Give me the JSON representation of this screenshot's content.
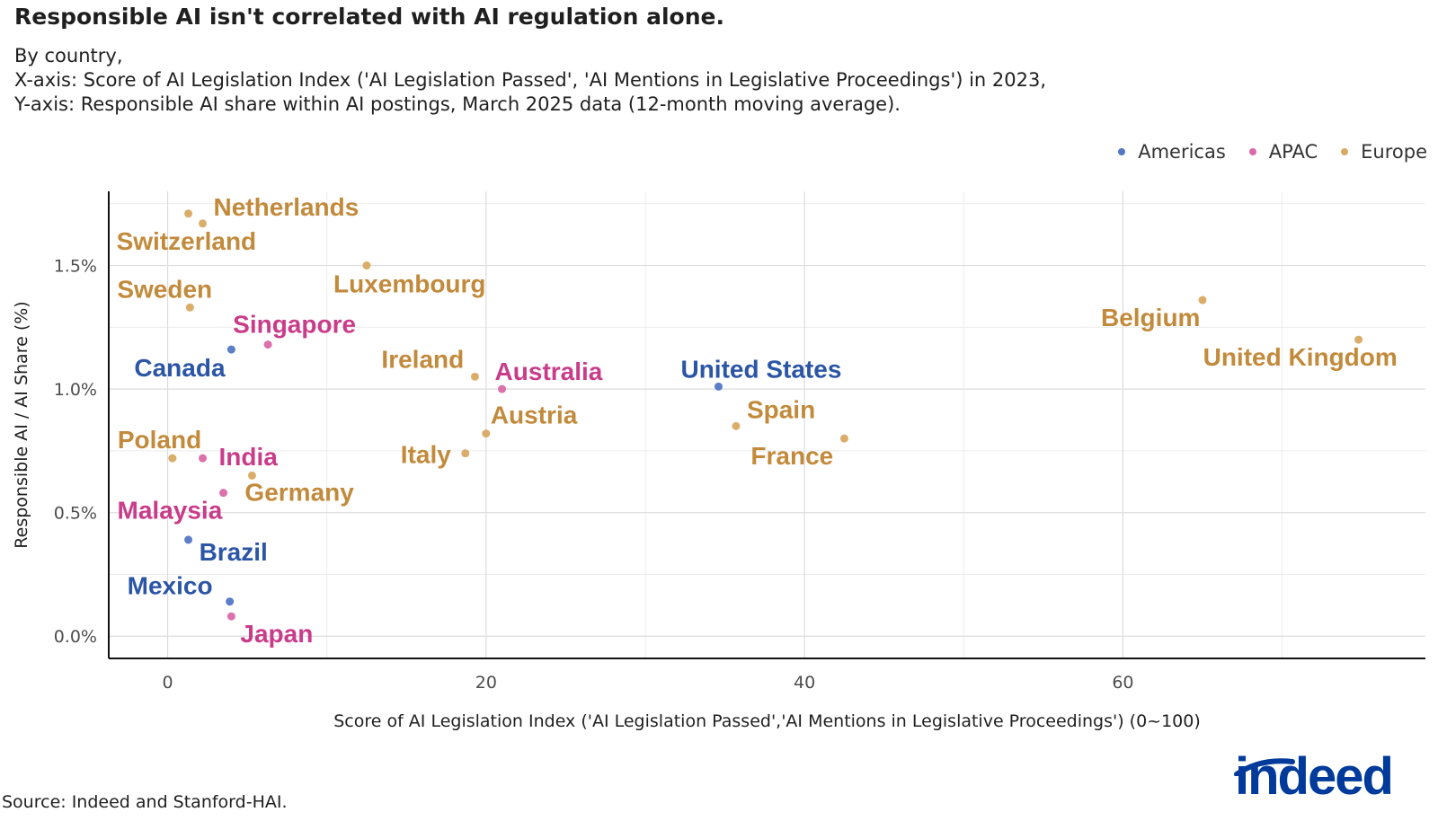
{
  "title": "Responsible AI isn't correlated with AI regulation alone.",
  "subtitle": [
    "By country,",
    "X-axis: Score of AI Legislation Index ('AI Legislation Passed', 'AI Mentions in Legislative Proceedings') in 2023,",
    "Y-axis: Responsible AI share within AI postings, March 2025 data (12-month moving average)."
  ],
  "legend": [
    {
      "label": "Americas",
      "color": "#5277c4"
    },
    {
      "label": "APAC",
      "color": "#d96aa8"
    },
    {
      "label": "Europe",
      "color": "#d8aa62"
    }
  ],
  "label_colors": {
    "Americas": "#2b55a5",
    "APAC": "#c93c8a",
    "Europe": "#c28a3b"
  },
  "source": "Source: Indeed and Stanford-HAI.",
  "logo_text": "indeed",
  "chart_data": {
    "type": "scatter",
    "xlabel": "Score of AI Legislation Index ('AI Legislation Passed','AI Mentions in Legislative Proceedings') (0~100)",
    "ylabel": "Responsible AI / AI Share (%)",
    "xlim": [
      -3.7,
      79
    ],
    "ylim": [
      -0.09,
      1.8
    ],
    "x_ticks": [
      0,
      20,
      40,
      60
    ],
    "y_ticks": [
      0.0,
      0.5,
      1.0,
      1.5
    ],
    "y_tick_labels": [
      "0.0%",
      "0.5%",
      "1.0%",
      "1.5%"
    ],
    "grid": true,
    "legend_position": "top-right",
    "points": [
      {
        "name": "Netherlands",
        "region": "Europe",
        "x": 2.2,
        "y": 1.67
      },
      {
        "name": "Switzerland",
        "region": "Europe",
        "x": 1.3,
        "y": 1.71
      },
      {
        "name": "Luxembourg",
        "region": "Europe",
        "x": 12.5,
        "y": 1.5
      },
      {
        "name": "Sweden",
        "region": "Europe",
        "x": 1.4,
        "y": 1.33
      },
      {
        "name": "Singapore",
        "region": "APAC",
        "x": 6.3,
        "y": 1.18
      },
      {
        "name": "Canada",
        "region": "Americas",
        "x": 4.0,
        "y": 1.16
      },
      {
        "name": "Ireland",
        "region": "Europe",
        "x": 19.3,
        "y": 1.05
      },
      {
        "name": "Australia",
        "region": "APAC",
        "x": 21.0,
        "y": 1.0
      },
      {
        "name": "United States",
        "region": "Americas",
        "x": 34.6,
        "y": 1.01
      },
      {
        "name": "Belgium",
        "region": "Europe",
        "x": 65.0,
        "y": 1.36
      },
      {
        "name": "United Kingdom",
        "region": "Europe",
        "x": 74.8,
        "y": 1.2
      },
      {
        "name": "Austria",
        "region": "Europe",
        "x": 20.0,
        "y": 0.82
      },
      {
        "name": "Spain",
        "region": "Europe",
        "x": 35.7,
        "y": 0.85
      },
      {
        "name": "France",
        "region": "Europe",
        "x": 42.5,
        "y": 0.8
      },
      {
        "name": "Poland",
        "region": "Europe",
        "x": 0.3,
        "y": 0.72
      },
      {
        "name": "India",
        "region": "APAC",
        "x": 2.2,
        "y": 0.72
      },
      {
        "name": "Italy",
        "region": "Europe",
        "x": 18.7,
        "y": 0.74
      },
      {
        "name": "Germany",
        "region": "Europe",
        "x": 5.3,
        "y": 0.65
      },
      {
        "name": "Malaysia",
        "region": "APAC",
        "x": 3.5,
        "y": 0.58
      },
      {
        "name": "Brazil",
        "region": "Americas",
        "x": 1.3,
        "y": 0.39
      },
      {
        "name": "Mexico",
        "region": "Americas",
        "x": 3.9,
        "y": 0.14
      },
      {
        "name": "Japan",
        "region": "APAC",
        "x": 4.0,
        "y": 0.08
      }
    ]
  }
}
